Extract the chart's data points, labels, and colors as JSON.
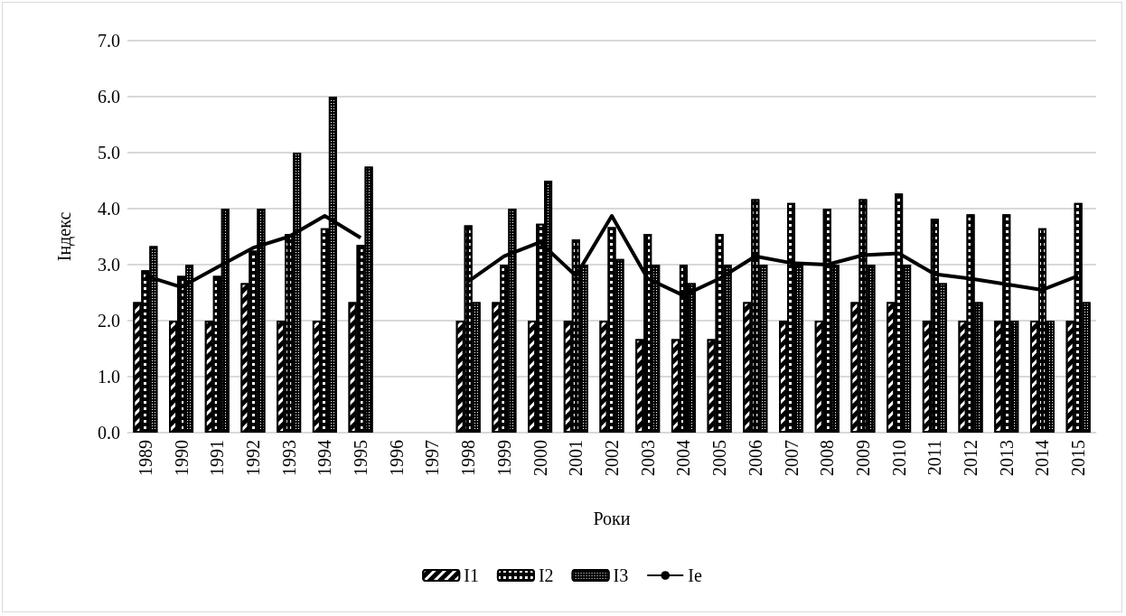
{
  "chart_data": {
    "type": "bar",
    "xlabel": "Роки",
    "ylabel": "Індекс",
    "categories": [
      "1989",
      "1990",
      "1991",
      "1992",
      "1993",
      "1994",
      "1995",
      "1996",
      "1997",
      "1998",
      "1999",
      "2000",
      "2001",
      "2002",
      "2003",
      "2004",
      "2005",
      "2006",
      "2007",
      "2008",
      "2009",
      "2010",
      "2011",
      "2012",
      "2013",
      "2014",
      "2015"
    ],
    "series": [
      {
        "name": "I1",
        "color": "#000000",
        "values": [
          2.33,
          2.0,
          2.0,
          2.67,
          2.0,
          2.0,
          2.33,
          null,
          null,
          2.0,
          2.33,
          2.0,
          2.0,
          2.0,
          1.67,
          1.67,
          1.67,
          2.33,
          2.0,
          2.0,
          2.33,
          2.33,
          2.0,
          2.0,
          2.0,
          2.0,
          2.0
        ]
      },
      {
        "name": "I2",
        "color": "#000000",
        "values": [
          2.9,
          2.8,
          2.8,
          3.25,
          3.55,
          3.65,
          3.35,
          null,
          null,
          3.7,
          3.0,
          3.73,
          3.45,
          3.67,
          3.55,
          3.0,
          3.55,
          4.17,
          4.1,
          4.0,
          4.17,
          4.27,
          3.82,
          3.9,
          3.9,
          3.65,
          4.1
        ]
      },
      {
        "name": "I3",
        "color": "#000000",
        "values": [
          3.33,
          3.0,
          4.0,
          4.0,
          5.0,
          6.0,
          4.75,
          null,
          null,
          2.33,
          4.0,
          4.5,
          3.0,
          3.1,
          3.0,
          2.67,
          3.0,
          3.0,
          3.0,
          3.0,
          3.0,
          3.0,
          2.67,
          2.33,
          2.0,
          2.0,
          2.33
        ]
      },
      {
        "name": "Ie",
        "type": "line",
        "color": "#000000",
        "values": [
          2.8,
          2.6,
          2.95,
          3.3,
          3.5,
          3.87,
          3.48,
          null,
          null,
          2.7,
          3.15,
          3.4,
          2.8,
          3.87,
          2.75,
          2.45,
          2.75,
          3.15,
          3.03,
          3.0,
          3.17,
          3.2,
          2.83,
          2.75,
          2.65,
          2.55,
          2.8
        ]
      }
    ],
    "ylim": [
      0,
      7
    ],
    "yticks": [
      {
        "value": 0,
        "label": "0.0"
      },
      {
        "value": 1,
        "label": "1.0"
      },
      {
        "value": 2,
        "label": "2.0"
      },
      {
        "value": 3,
        "label": "3.0"
      },
      {
        "value": 4,
        "label": "4.0"
      },
      {
        "value": 5,
        "label": "5.0"
      },
      {
        "value": 6,
        "label": "6.0"
      },
      {
        "value": 7,
        "label": "7.0"
      }
    ],
    "grid": "y",
    "legend": "bottom",
    "marker": "none"
  }
}
